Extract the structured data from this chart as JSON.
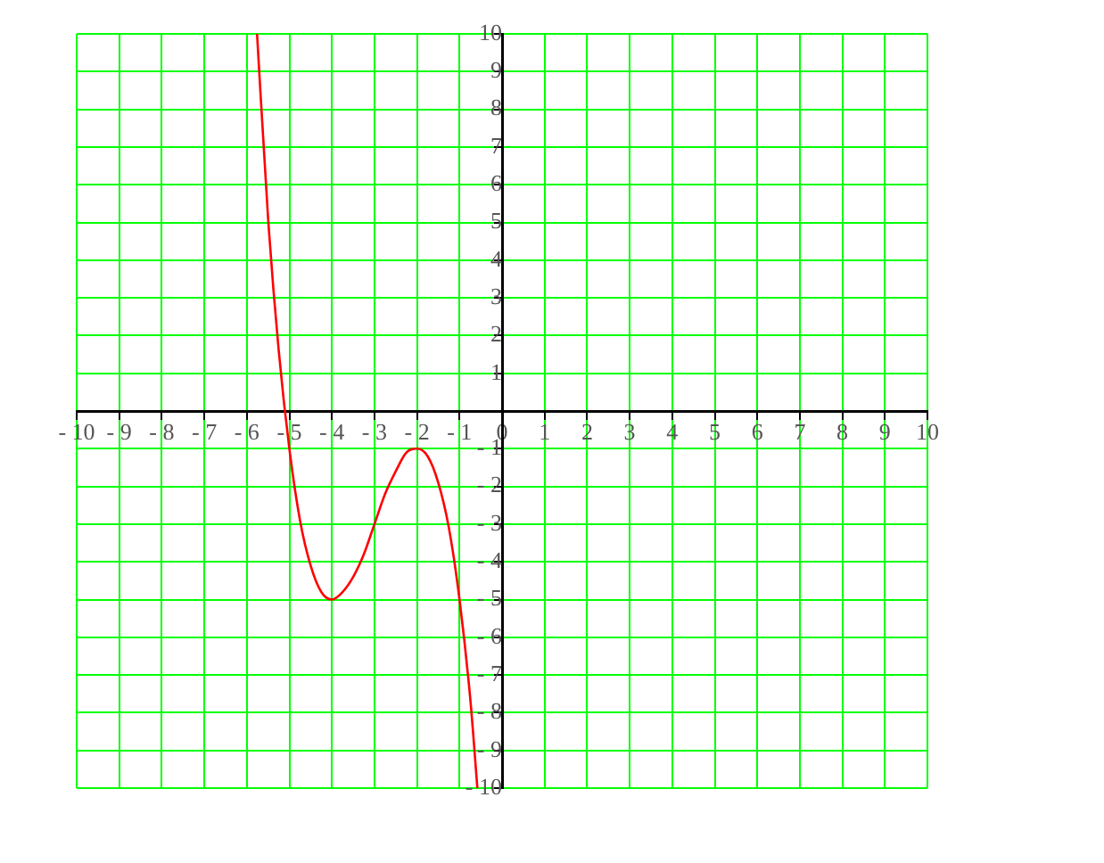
{
  "chart_data": {
    "type": "line",
    "xlim": [
      -10,
      10
    ],
    "ylim": [
      -10,
      10
    ],
    "xticks": [
      {
        "value": -10,
        "label": "- 10"
      },
      {
        "value": -9,
        "label": "- 9"
      },
      {
        "value": -8,
        "label": "- 8"
      },
      {
        "value": -7,
        "label": "- 7"
      },
      {
        "value": -6,
        "label": "- 6"
      },
      {
        "value": -5,
        "label": "- 5"
      },
      {
        "value": -4,
        "label": "- 4"
      },
      {
        "value": -3,
        "label": "- 3"
      },
      {
        "value": -2,
        "label": "- 2"
      },
      {
        "value": -1,
        "label": "- 1"
      },
      0,
      1,
      2,
      3,
      4,
      5,
      6,
      7,
      8,
      9,
      10
    ],
    "yticks": [
      {
        "value": -10,
        "label": "- 10"
      },
      {
        "value": -9,
        "label": "- 9"
      },
      {
        "value": -8,
        "label": "- 8"
      },
      {
        "value": -7,
        "label": "- 7"
      },
      {
        "value": -6,
        "label": "- 6"
      },
      {
        "value": -5,
        "label": "- 5"
      },
      {
        "value": -4,
        "label": "- 4"
      },
      {
        "value": -3,
        "label": "- 3"
      },
      {
        "value": -2,
        "label": "- 2"
      },
      {
        "value": -1,
        "label": "- 1"
      },
      {
        "value": 0,
        "label": null
      },
      1,
      2,
      3,
      4,
      5,
      6,
      7,
      8,
      9,
      10
    ],
    "grid": true,
    "marker": "none",
    "x": [
      -5.76,
      -5.5,
      -5.25,
      -5,
      -4.75,
      -4.5,
      -4.25,
      -4,
      -3.75,
      -3.5,
      -3.25,
      -3,
      -2.75,
      -2.5,
      -2.25,
      -2,
      -1.75,
      -1.5,
      -1.25,
      -1,
      -0.75,
      -0.58
    ],
    "series": [
      {
        "color": "#ff0000",
        "values": [
          10,
          5.1,
          1.6,
          -1,
          -2.9,
          -4.1,
          -4.8,
          -5,
          -4.8,
          -4.4,
          -3.8,
          -3,
          -2.2,
          -1.6,
          -1.1,
          -1,
          -1.2,
          -1.9,
          -3.1,
          -5,
          -7.6,
          -10
        ]
      }
    ]
  }
}
